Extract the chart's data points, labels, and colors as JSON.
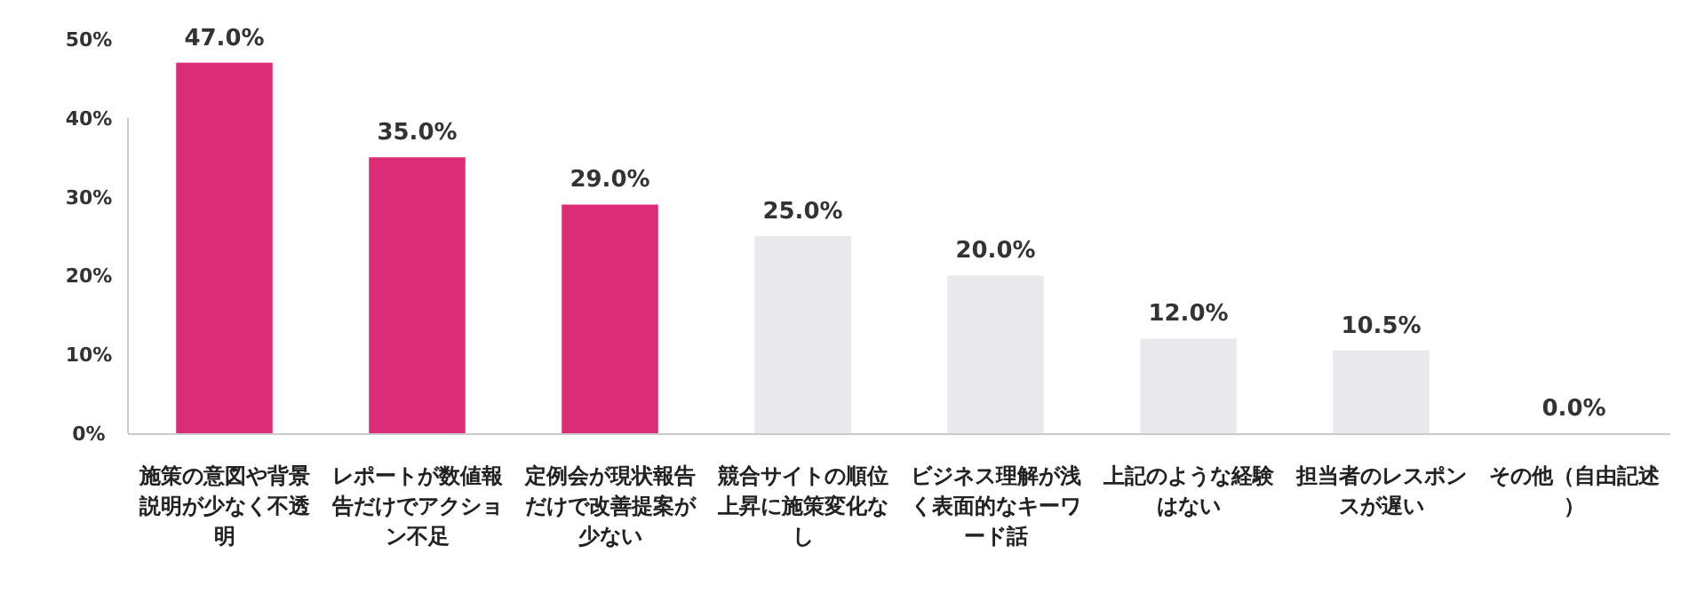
{
  "chart_data": {
    "type": "bar",
    "categories": [
      "施策の意図や背景説明が少なく不透明",
      "レポートが数値報告だけでアクション不足",
      "定例会が現状報告だけで改善提案が少ない",
      "競合サイトの順位上昇に施策変化なし",
      "ビジネス理解が浅く表面的なキーワード話",
      "上記のような経験はない",
      "担当者のレスポンスが遅い",
      "その他（自由記述）"
    ],
    "values": [
      47.0,
      35.0,
      29.0,
      25.0,
      20.0,
      12.0,
      10.5,
      0.0
    ],
    "colors": [
      "#dc2c78",
      "#dc2c78",
      "#dc2c78",
      "#e9e9ed",
      "#e9e9ed",
      "#e9e9ed",
      "#e9e9ed",
      "#e9e9ed"
    ],
    "value_labels": [
      "47.0%",
      "35.0%",
      "29.0%",
      "25.0%",
      "20.0%",
      "12.0%",
      "10.5%",
      "0.0%"
    ],
    "ylim": [
      0,
      50
    ],
    "yticks": [
      {
        "value": 0,
        "label": "0%"
      },
      {
        "value": 10,
        "label": "10%"
      },
      {
        "value": 20,
        "label": "20%"
      },
      {
        "value": 30,
        "label": "30%"
      },
      {
        "value": 40,
        "label": "40%"
      },
      {
        "value": 50,
        "label": "50%"
      }
    ],
    "grid": false
  }
}
